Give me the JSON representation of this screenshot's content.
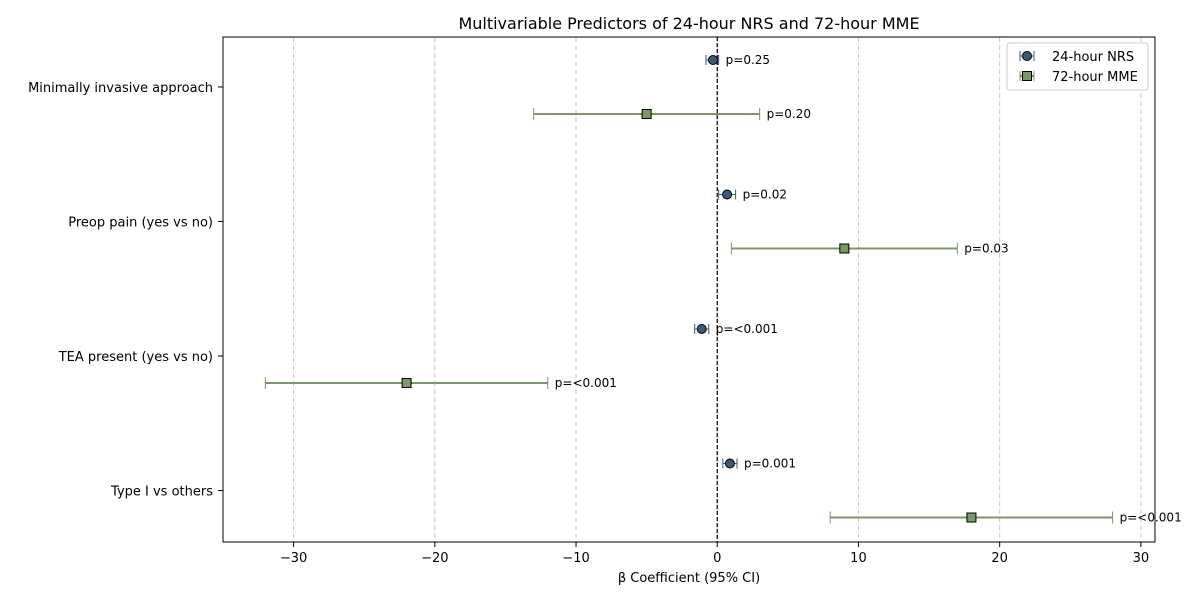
{
  "chart_data": {
    "type": "forest",
    "title": "Multivariable Predictors of 24-hour NRS and 72-hour MME",
    "xlabel": "β Coefficient (95% CI)",
    "xlim": [
      -35,
      31
    ],
    "xticks": [
      -30,
      -20,
      -10,
      0,
      10,
      20,
      30
    ],
    "xtick_labels": [
      "−30",
      "−20",
      "−10",
      "0",
      "10",
      "20",
      "30"
    ],
    "grid": "vertical dashed",
    "reference_line": 0,
    "legend_position": "top-right",
    "categories": [
      "Minimally invasive approach",
      "Preop pain (yes vs no)",
      "TEA present (yes vs no)",
      "Type I vs others"
    ],
    "series": [
      {
        "name": "24-hour NRS",
        "marker": "circle",
        "color": "#3b5a78",
        "points": [
          {
            "beta": -0.3,
            "lo": -0.8,
            "hi": 0.1,
            "p": "p=0.25"
          },
          {
            "beta": 0.7,
            "lo": 0.1,
            "hi": 1.3,
            "p": "p=0.02"
          },
          {
            "beta": -1.1,
            "lo": -1.6,
            "hi": -0.6,
            "p": "p=<0.001"
          },
          {
            "beta": 0.9,
            "lo": 0.4,
            "hi": 1.4,
            "p": "p=0.001"
          }
        ]
      },
      {
        "name": "72-hour MME",
        "marker": "square",
        "color": "#7a9a65",
        "points": [
          {
            "beta": -5,
            "lo": -13,
            "hi": 3,
            "p": "p=0.20"
          },
          {
            "beta": 9,
            "lo": 1,
            "hi": 17,
            "p": "p=0.03"
          },
          {
            "beta": -22,
            "lo": -32,
            "hi": -12,
            "p": "p=<0.001"
          },
          {
            "beta": 18,
            "lo": 8,
            "hi": 28,
            "p": "p=<0.001"
          }
        ]
      }
    ]
  }
}
